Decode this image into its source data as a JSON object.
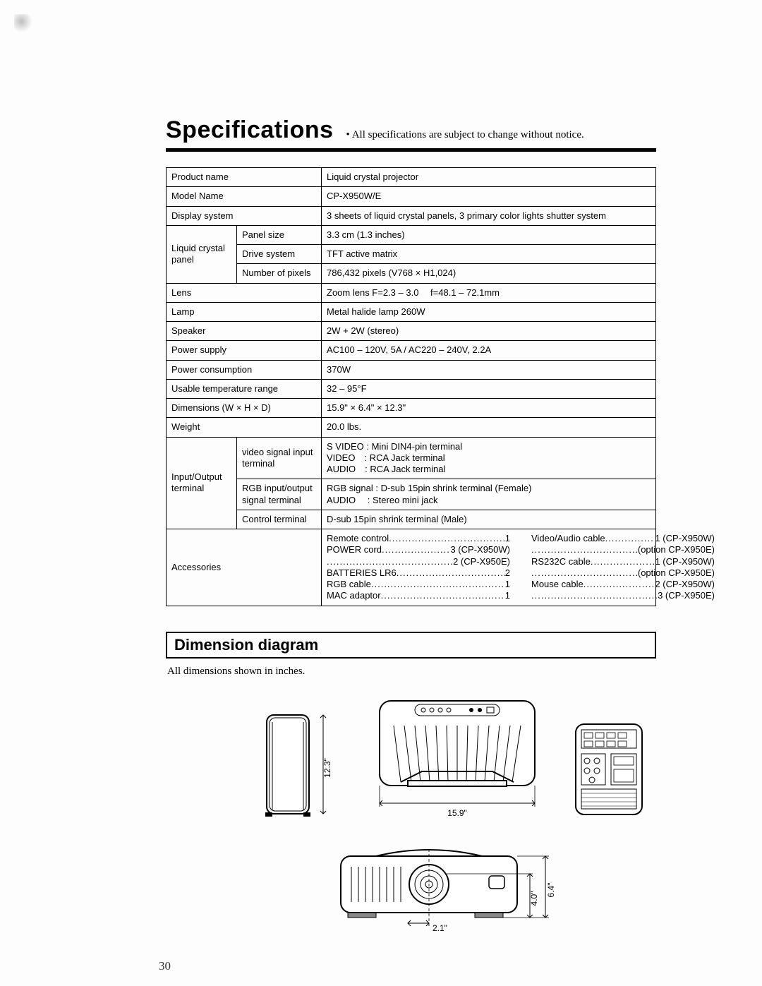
{
  "title": {
    "main": "Specifications",
    "note": "• All specifications are subject to change without notice."
  },
  "spec_table": {
    "rows": [
      {
        "label": "Product name",
        "sub": null,
        "value": "Liquid crystal projector"
      },
      {
        "label": "Model Name",
        "sub": null,
        "value": "CP-X950W/E"
      },
      {
        "label": "Display system",
        "sub": null,
        "value": "3 sheets of liquid crystal panels, 3 primary color lights shutter system"
      },
      {
        "group": "Liquid crystal panel",
        "sub": "Panel size",
        "value": "3.3 cm (1.3 inches)"
      },
      {
        "group_cont": true,
        "sub": "Drive system",
        "value": "TFT active matrix"
      },
      {
        "group_cont": true,
        "sub": "Number of pixels",
        "value": "786,432 pixels (V768 × H1,024)"
      },
      {
        "label": "Lens",
        "sub": null,
        "value": "Zoom lens F=2.3 – 3.0  f=48.1 – 72.1mm"
      },
      {
        "label": "Lamp",
        "sub": null,
        "value": "Metal halide lamp 260W"
      },
      {
        "label": "Speaker",
        "sub": null,
        "value": "2W + 2W (stereo)"
      },
      {
        "label": "Power supply",
        "sub": null,
        "value": "AC100 – 120V, 5A / AC220 – 240V, 2.2A"
      },
      {
        "label": "Power consumption",
        "sub": null,
        "value": "370W"
      },
      {
        "label": "Usable temperature range",
        "sub": null,
        "value": "32 – 95°F"
      },
      {
        "label": "Dimensions (W × H × D)",
        "sub": null,
        "value": "15.9\" × 6.4\" × 12.3\""
      },
      {
        "label": "Weight",
        "sub": null,
        "value": "20.0 lbs."
      },
      {
        "group": "Input/Output terminal",
        "sub": "video signal input terminal",
        "value": "S VIDEO : Mini DIN4-pin terminal\nVIDEO : RCA Jack terminal\nAUDIO : RCA Jack terminal"
      },
      {
        "group_cont": true,
        "sub": "RGB input/output signal terminal",
        "value": "RGB signal : D-sub 15pin shrink terminal (Female)\nAUDIO  : Stereo mini jack"
      },
      {
        "group_cont": true,
        "sub": "Control terminal",
        "value": "D-sub 15pin shrink terminal (Male)"
      }
    ],
    "accessories": {
      "label": "Accessories",
      "left": [
        {
          "name": "Remote control",
          "qty": "1"
        },
        {
          "name": "POWER cord",
          "qty": "3 (CP-X950W)"
        },
        {
          "name": "",
          "qty": "2 (CP-X950E)"
        },
        {
          "name": "BATTERIES LR6",
          "qty": "2"
        },
        {
          "name": "RGB cable",
          "qty": "1"
        },
        {
          "name": "MAC adaptor",
          "qty": "1"
        }
      ],
      "right": [
        {
          "name": "Video/Audio cable",
          "qty": "1 (CP-X950W)"
        },
        {
          "name": "",
          "qty": "(option CP-X950E)"
        },
        {
          "name": "RS232C cable",
          "qty": "1 (CP-X950W)"
        },
        {
          "name": "",
          "qty": "(option CP-X950E)"
        },
        {
          "name": "Mouse cable",
          "qty": "2 (CP-X950W)"
        },
        {
          "name": "",
          "qty": "3 (CP-X950E)"
        }
      ]
    }
  },
  "dimension_section": {
    "heading": "Dimension diagram",
    "note": "All dimensions shown in inches.",
    "labels": {
      "depth": "12.3\"",
      "width": "15.9\"",
      "height": "6.4\"",
      "lens_height": "4.0\"",
      "lens_offset": "2.1\""
    }
  },
  "page_number": "30",
  "colors": {
    "text": "#000000",
    "bg": "#ffffff",
    "rule": "#000000"
  }
}
